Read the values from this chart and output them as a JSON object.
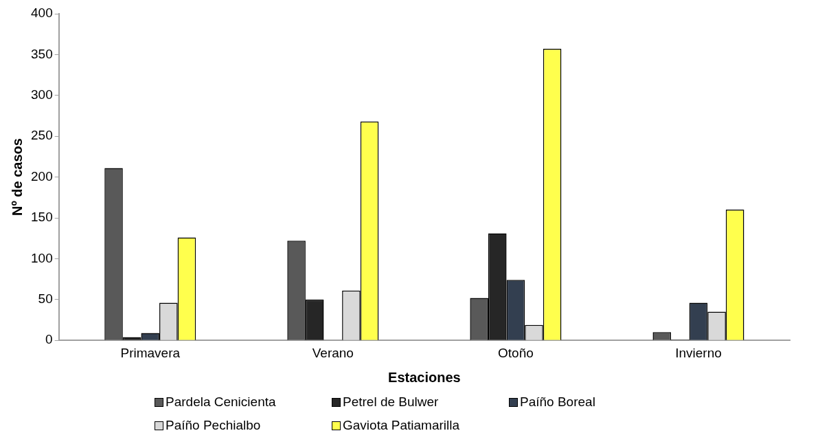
{
  "chart_data": {
    "type": "bar",
    "xlabel": "Estaciones",
    "ylabel": "Nº de casos",
    "categories": [
      "Primavera",
      "Verano",
      "Otoño",
      "Invierno"
    ],
    "series": [
      {
        "name": "Pardela Cenicienta",
        "color": "#595959",
        "values": [
          211,
          122,
          52,
          10
        ]
      },
      {
        "name": "Petrel de Bulwer",
        "color": "#262626",
        "values": [
          4,
          50,
          131,
          1
        ]
      },
      {
        "name": "Paíño Boreal",
        "color": "#333f50",
        "values": [
          9,
          0,
          74,
          46
        ]
      },
      {
        "name": "Paíño Pechialbo",
        "color": "#d9d9d9",
        "values": [
          46,
          61,
          19,
          35
        ]
      },
      {
        "name": "Gaviota Patiamarilla",
        "color": "#ffff4d",
        "values": [
          126,
          268,
          357,
          160
        ]
      }
    ],
    "ylim": [
      0,
      400
    ],
    "yticks": [
      0,
      50,
      100,
      150,
      200,
      250,
      300,
      350,
      400
    ],
    "grid": false,
    "legend": "bottom"
  }
}
